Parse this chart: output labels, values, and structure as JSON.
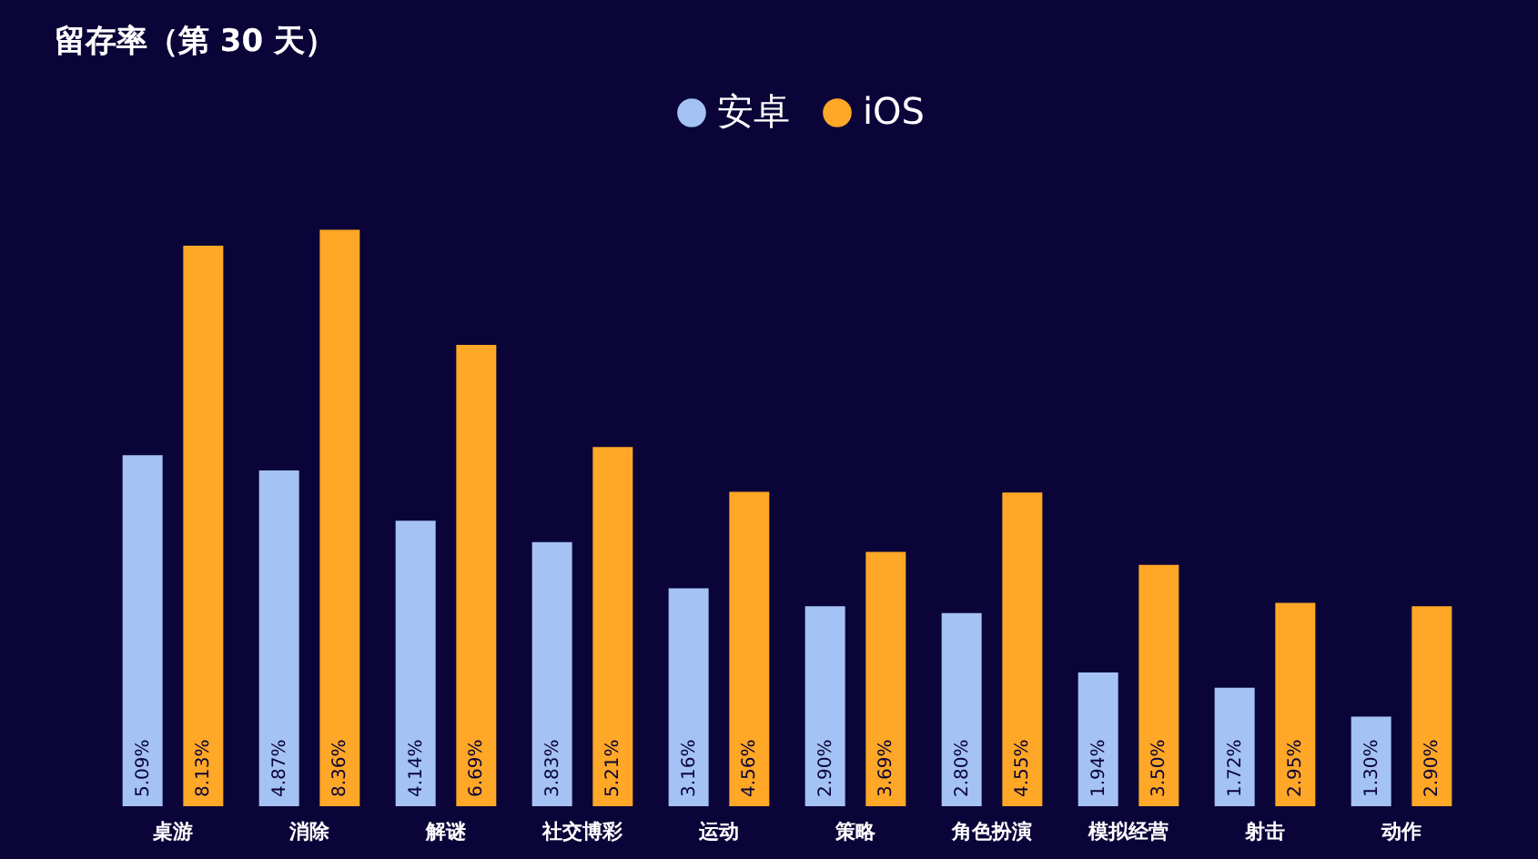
{
  "chart_data": {
    "type": "bar",
    "title": "留存率（第 30 天）",
    "categories": [
      "桌游",
      "消除",
      "解谜",
      "社交博彩",
      "运动",
      "策略",
      "角色扮演",
      "模拟经营",
      "射击",
      "动作"
    ],
    "series": [
      {
        "name": "安卓",
        "color": "#a4c2f4",
        "values": [
          5.09,
          4.87,
          4.14,
          3.83,
          3.16,
          2.9,
          2.8,
          1.94,
          1.72,
          1.3
        ],
        "value_labels": [
          "5.09%",
          "4.87%",
          "4.14%",
          "3.83%",
          "3.16%",
          "2.90%",
          "2.80%",
          "1.94%",
          "1.72%",
          "1.30%"
        ]
      },
      {
        "name": "iOS",
        "color": "#ffa726",
        "values": [
          8.13,
          8.36,
          6.69,
          5.21,
          4.56,
          3.69,
          4.55,
          3.5,
          2.95,
          2.9
        ],
        "value_labels": [
          "8.13%",
          "8.36%",
          "6.69%",
          "5.21%",
          "4.56%",
          "3.69%",
          "4.55%",
          "3.50%",
          "2.95%",
          "2.90%"
        ]
      }
    ],
    "legend": "top",
    "grid": false,
    "tick_labels": "x"
  }
}
